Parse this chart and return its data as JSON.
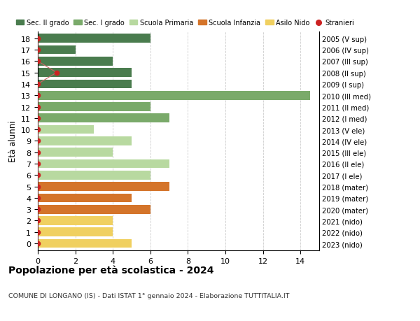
{
  "ages": [
    18,
    17,
    16,
    15,
    14,
    13,
    12,
    11,
    10,
    9,
    8,
    7,
    6,
    5,
    4,
    3,
    2,
    1,
    0
  ],
  "values": [
    6,
    2,
    4,
    5,
    5,
    14.5,
    6,
    7,
    3,
    5,
    4,
    7,
    6,
    7,
    5,
    6,
    4,
    4,
    5
  ],
  "right_labels": [
    "2005 (V sup)",
    "2006 (IV sup)",
    "2007 (III sup)",
    "2008 (II sup)",
    "2009 (I sup)",
    "2010 (III med)",
    "2011 (II med)",
    "2012 (I med)",
    "2013 (V ele)",
    "2014 (IV ele)",
    "2015 (III ele)",
    "2016 (II ele)",
    "2017 (I ele)",
    "2018 (mater)",
    "2019 (mater)",
    "2020 (mater)",
    "2021 (nido)",
    "2022 (nido)",
    "2023 (nido)"
  ],
  "bar_colors": [
    "#4a7c4e",
    "#4a7c4e",
    "#4a7c4e",
    "#4a7c4e",
    "#4a7c4e",
    "#7aaa6a",
    "#7aaa6a",
    "#7aaa6a",
    "#b8d9a0",
    "#b8d9a0",
    "#b8d9a0",
    "#b8d9a0",
    "#b8d9a0",
    "#d4742a",
    "#d4742a",
    "#d4742a",
    "#f0d060",
    "#f0d060",
    "#f0d060"
  ],
  "stranieri_ages": [
    18,
    17,
    16,
    15,
    14,
    13,
    12,
    11,
    10,
    9,
    8,
    7,
    6,
    5,
    4,
    3,
    2,
    1,
    0
  ],
  "stranieri_x": [
    0,
    0,
    0,
    1,
    0,
    0,
    0,
    0,
    0,
    0,
    0,
    0,
    0,
    0,
    0,
    0,
    0,
    0,
    0
  ],
  "legend_labels": [
    "Sec. II grado",
    "Sec. I grado",
    "Scuola Primaria",
    "Scuola Infanzia",
    "Asilo Nido",
    "Stranieri"
  ],
  "legend_colors": [
    "#4a7c4e",
    "#7aaa6a",
    "#b8d9a0",
    "#d4742a",
    "#f0d060",
    "#cc2222"
  ],
  "ylabel_left": "Età alunni",
  "title": "Popolazione per età scolastica - 2024",
  "subtitle": "COMUNE DI LONGANO (IS) - Dati ISTAT 1° gennaio 2024 - Elaborazione TUTTITALIA.IT",
  "xlim": [
    0,
    15
  ],
  "xticks": [
    0,
    2,
    4,
    6,
    8,
    10,
    12,
    14
  ],
  "background_color": "#ffffff",
  "grid_color": "#cccccc",
  "bar_height": 0.78,
  "stranieri_dot_color": "#cc2222",
  "stranieri_line_color": "#cc6666"
}
